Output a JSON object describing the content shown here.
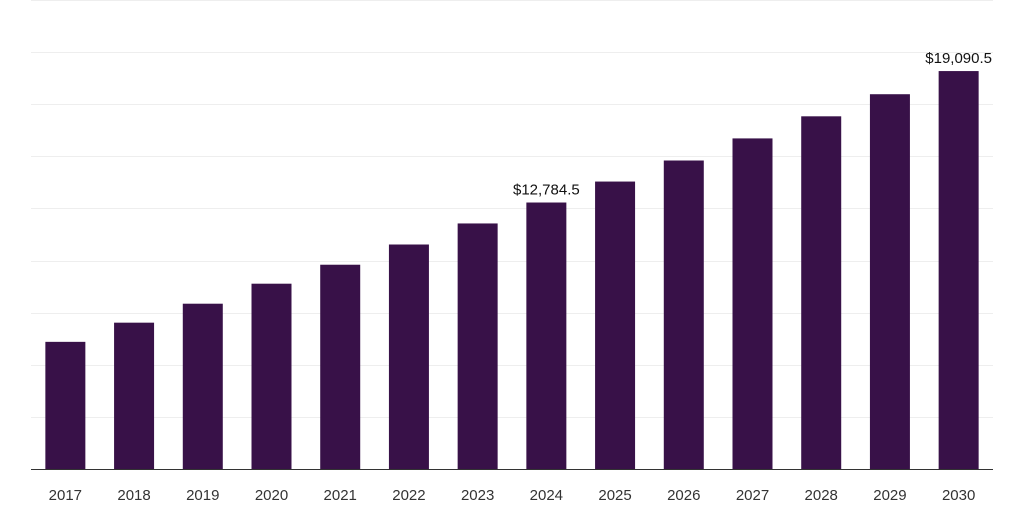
{
  "chart_data": {
    "type": "bar",
    "title": "",
    "xlabel": "",
    "ylabel": "",
    "categories": [
      "2017",
      "2018",
      "2019",
      "2020",
      "2021",
      "2022",
      "2023",
      "2024",
      "2025",
      "2026",
      "2027",
      "2028",
      "2029",
      "2030"
    ],
    "values": [
      6100,
      7020,
      7930,
      8890,
      9800,
      10770,
      11780,
      12784.5,
      13790,
      14800,
      15860,
      16920,
      17980,
      19090.5
    ],
    "data_labels": {
      "2024": "$12,784.5",
      "2030": "$19,090.5"
    },
    "ylim": [
      0,
      22500
    ],
    "grid_step": 2500,
    "grid": true,
    "bar_color": "#381148"
  }
}
